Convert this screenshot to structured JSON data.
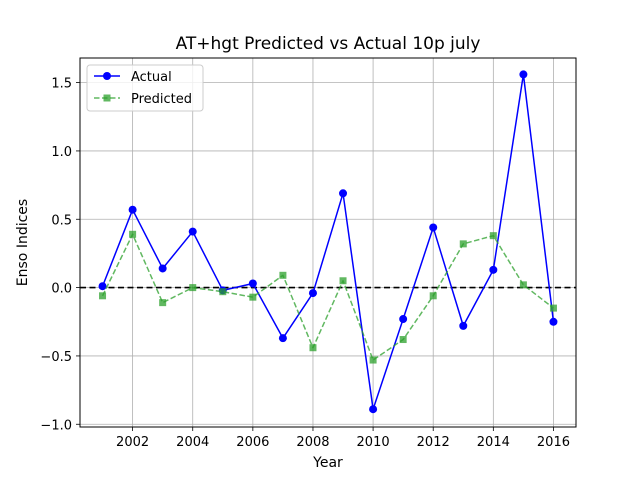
{
  "chart_data": {
    "type": "line",
    "title": "AT+hgt Predicted vs Actual 10p july",
    "xlabel": "Year",
    "ylabel": "Enso Indices",
    "x": [
      2001,
      2002,
      2003,
      2004,
      2005,
      2006,
      2007,
      2008,
      2009,
      2010,
      2011,
      2012,
      2013,
      2014,
      2015,
      2016
    ],
    "xlim": [
      2000.25,
      2016.75
    ],
    "ylim": [
      -1.02,
      1.68
    ],
    "xticks": [
      2002,
      2004,
      2006,
      2008,
      2010,
      2012,
      2014,
      2016
    ],
    "yticks": [
      -1.0,
      -0.5,
      0.0,
      0.5,
      1.0,
      1.5
    ],
    "xtick_labels": [
      "2002",
      "2004",
      "2006",
      "2008",
      "2010",
      "2012",
      "2014",
      "2016"
    ],
    "ytick_labels": [
      "−1.0",
      "−0.5",
      "0.0",
      "0.5",
      "1.0",
      "1.5"
    ],
    "grid": true,
    "legend_position": "top-left",
    "reference_line": {
      "y": 0,
      "style": "dashed",
      "color": "#000000"
    },
    "series": [
      {
        "name": "Actual",
        "color": "#0000ff",
        "marker": "circle",
        "line_style": "solid",
        "values": [
          0.01,
          0.57,
          0.14,
          0.41,
          -0.02,
          0.03,
          -0.37,
          -0.04,
          0.69,
          -0.89,
          -0.23,
          0.44,
          -0.28,
          0.13,
          1.56,
          -0.25
        ]
      },
      {
        "name": "Predicted",
        "color": "#2ca02c",
        "marker": "square",
        "line_style": "dashed",
        "values": [
          -0.06,
          0.39,
          -0.11,
          0.0,
          -0.03,
          -0.07,
          0.09,
          -0.44,
          0.05,
          -0.53,
          -0.38,
          -0.06,
          0.32,
          0.38,
          0.02,
          -0.15
        ]
      }
    ]
  }
}
